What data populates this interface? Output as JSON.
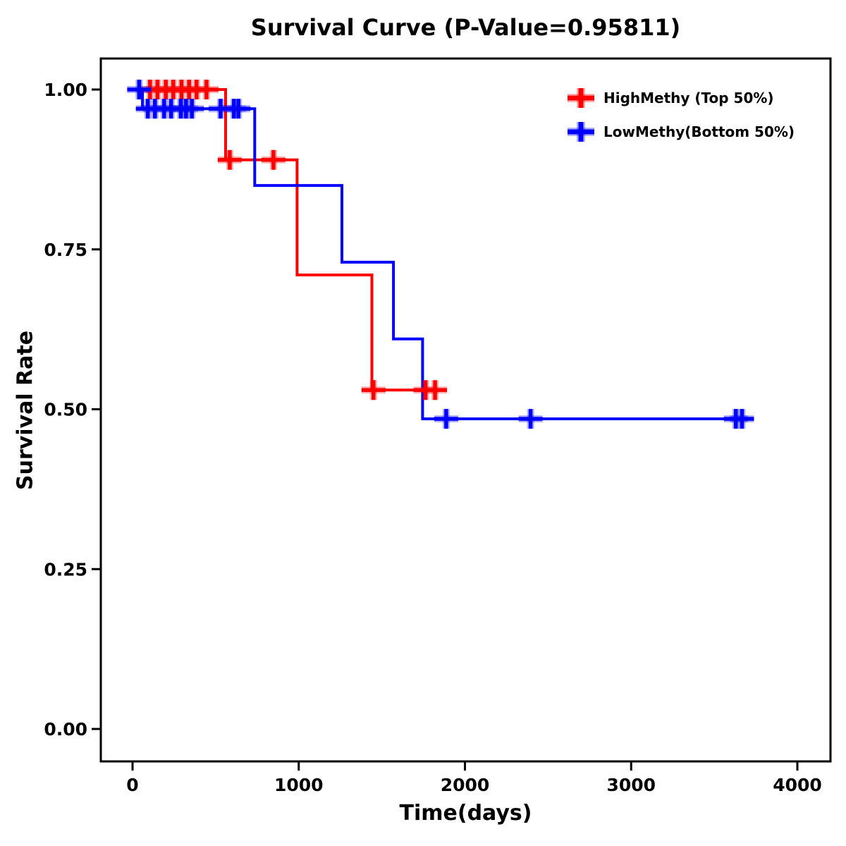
{
  "title": "Survival Curve (P-Value=0.95811)",
  "p_value": "0.95811",
  "chart_data": {
    "type": "line",
    "subtype": "kaplan-meier-survival-step",
    "title": "Survival Curve (P-Value=0.95811)",
    "xlabel": "Time(days)",
    "ylabel": "Survival Rate",
    "xlim": [
      0,
      4000
    ],
    "ylim": [
      0.0,
      1.0
    ],
    "grid": false,
    "legend_position": "top-right",
    "x_ticks": {
      "values": [
        0,
        1000,
        2000,
        3000,
        4000
      ],
      "labels": [
        "0",
        "1000",
        "2000",
        "3000",
        "4000"
      ]
    },
    "y_ticks": {
      "values": [
        0.0,
        0.25,
        0.5,
        0.75,
        1.0
      ],
      "labels": [
        "0.00",
        "0.25",
        "0.50",
        "0.75",
        "1.00"
      ]
    },
    "censor_marker": "plus",
    "series": [
      {
        "name": "HighMethy (Top 50%)",
        "color": "#ff0000",
        "steps": [
          [
            0,
            1.0
          ],
          [
            560,
            1.0
          ],
          [
            560,
            0.89
          ],
          [
            990,
            0.89
          ],
          [
            990,
            0.71
          ],
          [
            1440,
            0.71
          ],
          [
            1440,
            0.53
          ],
          [
            1880,
            0.53
          ]
        ],
        "censors": [
          [
            105,
            1.0
          ],
          [
            150,
            1.0
          ],
          [
            200,
            1.0
          ],
          [
            245,
            1.0
          ],
          [
            295,
            1.0
          ],
          [
            340,
            1.0
          ],
          [
            385,
            1.0
          ],
          [
            445,
            1.0
          ],
          [
            585,
            0.89
          ],
          [
            848,
            0.89
          ],
          [
            1450,
            0.53
          ],
          [
            1763,
            0.53
          ],
          [
            1820,
            0.53
          ]
        ]
      },
      {
        "name": "LowMethy(Bottom 50%)",
        "color": "#0000ff",
        "steps": [
          [
            0,
            1.0
          ],
          [
            60,
            1.0
          ],
          [
            60,
            0.97
          ],
          [
            735,
            0.97
          ],
          [
            735,
            0.85
          ],
          [
            1260,
            0.85
          ],
          [
            1260,
            0.73
          ],
          [
            1570,
            0.73
          ],
          [
            1570,
            0.61
          ],
          [
            1745,
            0.61
          ],
          [
            1745,
            0.485
          ],
          [
            3690,
            0.485
          ]
        ],
        "censors": [
          [
            40,
            1.0
          ],
          [
            92,
            0.97
          ],
          [
            135,
            0.97
          ],
          [
            190,
            0.97
          ],
          [
            232,
            0.97
          ],
          [
            290,
            0.97
          ],
          [
            322,
            0.97
          ],
          [
            357,
            0.97
          ],
          [
            530,
            0.97
          ],
          [
            610,
            0.97
          ],
          [
            637,
            0.97
          ],
          [
            1887,
            0.485
          ],
          [
            2395,
            0.485
          ],
          [
            3630,
            0.485
          ],
          [
            3667,
            0.485
          ]
        ]
      }
    ]
  },
  "legend": {
    "items": [
      {
        "label": "HighMethy (Top 50%)",
        "color": "#ff0000"
      },
      {
        "label": "LowMethy(Bottom 50%)",
        "color": "#0000ff"
      }
    ]
  }
}
